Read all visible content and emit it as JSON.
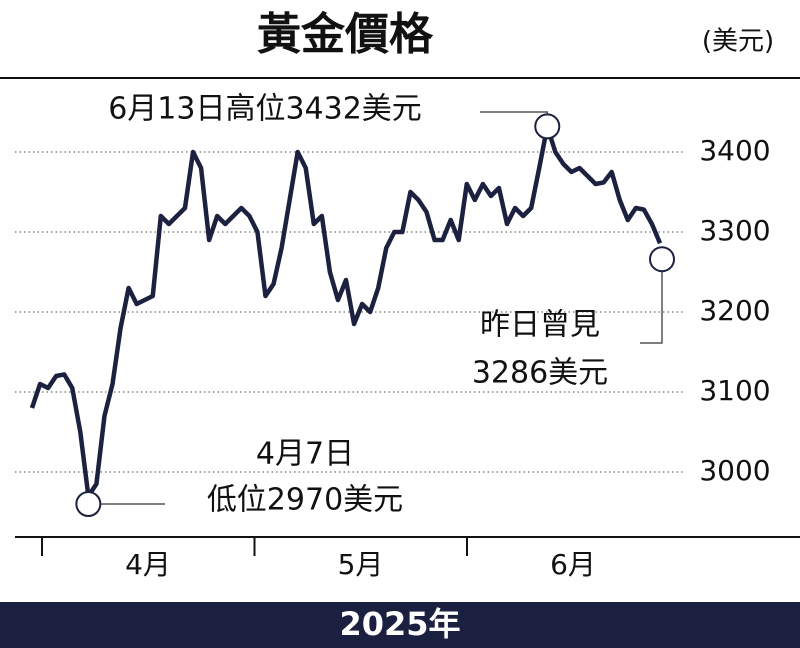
{
  "chart_data": {
    "type": "line",
    "title": "黃金價格",
    "y_unit": "(美元)",
    "x_label": "2025年",
    "month_labels": [
      "4月",
      "5月",
      "6月"
    ],
    "series": [
      {
        "color": "#1d2140",
        "values": [
          3080,
          3110,
          3105,
          3120,
          3122,
          3105,
          3050,
          2970,
          2985,
          3070,
          3110,
          3180,
          3230,
          3210,
          3215,
          3220,
          3320,
          3310,
          3320,
          3330,
          3400,
          3380,
          3290,
          3320,
          3310,
          3320,
          3330,
          3320,
          3300,
          3220,
          3235,
          3280,
          3340,
          3400,
          3380,
          3310,
          3320,
          3250,
          3215,
          3240,
          3185,
          3210,
          3200,
          3230,
          3280,
          3300,
          3300,
          3350,
          3340,
          3325,
          3290,
          3290,
          3315,
          3290,
          3360,
          3340,
          3360,
          3345,
          3355,
          3310,
          3330,
          3320,
          3330,
          3380,
          3432,
          3400,
          3385,
          3375,
          3380,
          3370,
          3360,
          3362,
          3375,
          3340,
          3315,
          3330,
          3328,
          3310,
          3286
        ]
      }
    ],
    "ylim": [
      2920,
      3490
    ],
    "yticks": [
      3000,
      3100,
      3200,
      3300,
      3400
    ],
    "grid": true,
    "annotations": [
      {
        "lines": [
          "6月13日高位3432美元"
        ]
      },
      {
        "lines": [
          "4月7日",
          "低位2970美元"
        ]
      },
      {
        "lines": [
          "昨日曾見",
          "3286美元"
        ]
      }
    ]
  }
}
